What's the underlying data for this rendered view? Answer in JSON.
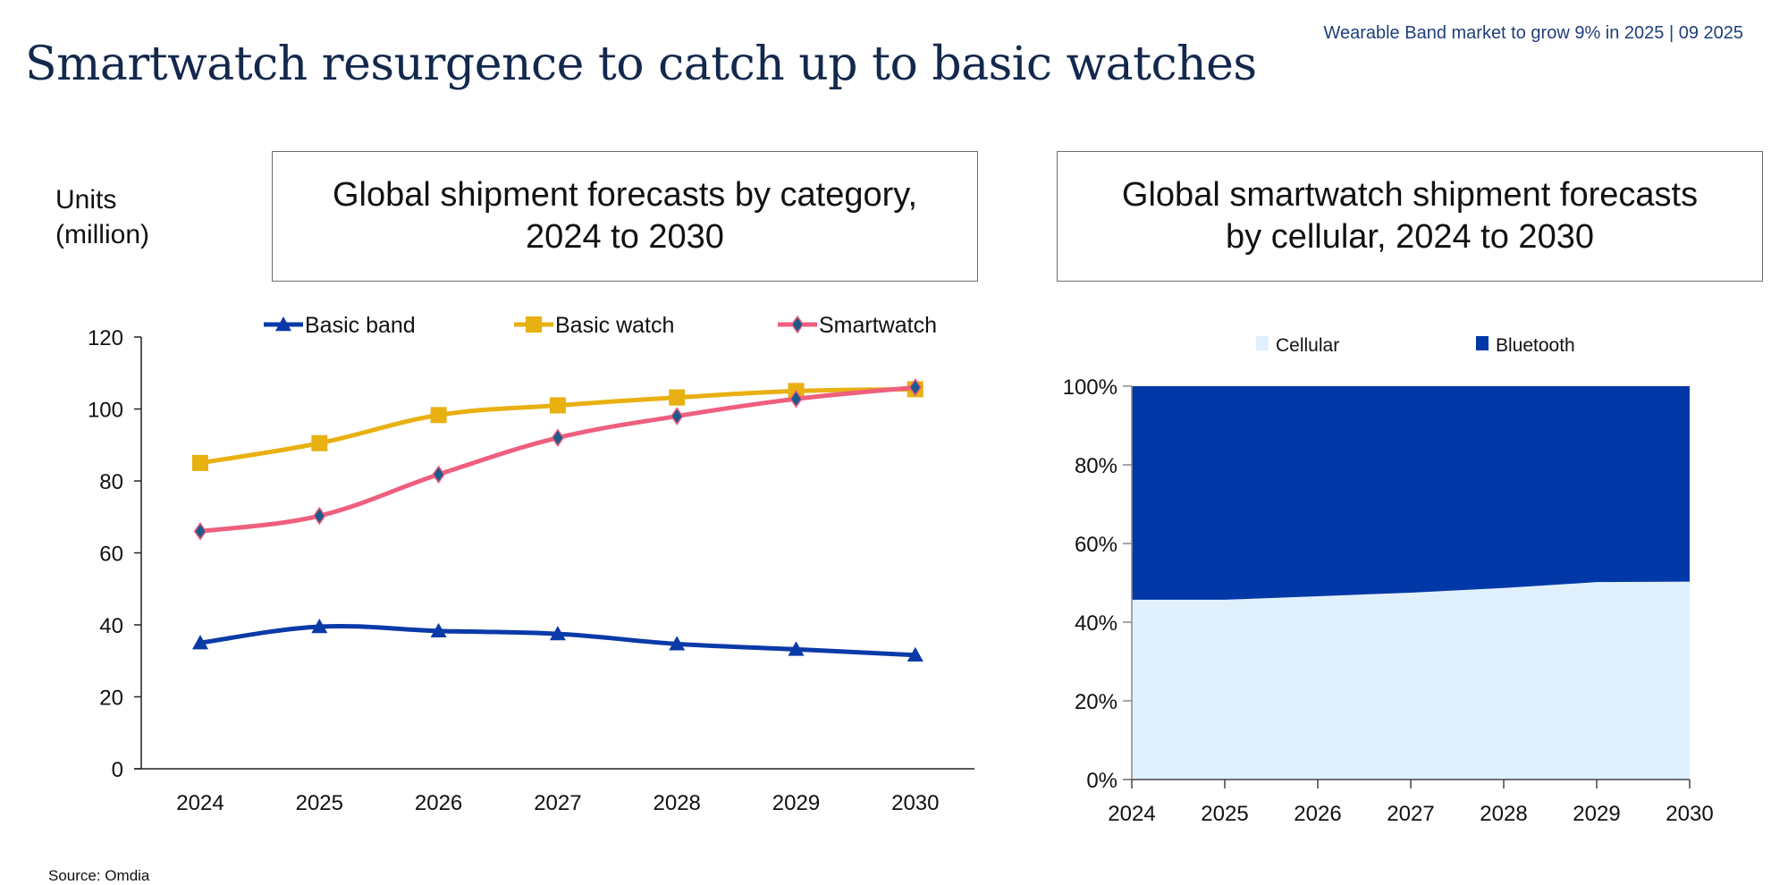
{
  "header": {
    "top_note": "Wearable Band market to grow 9% in 2025 | 09 2025",
    "title": "Smartwatch resurgence to catch up to basic watches"
  },
  "footer": {
    "source": "Source: Omdia"
  },
  "chart_data": [
    {
      "type": "line",
      "title_line1": "Global shipment forecasts by category,",
      "title_line2": "2024 to 2030",
      "ylabel_line1": "Units",
      "ylabel_line2": "(million)",
      "categories": [
        "2024",
        "2025",
        "2026",
        "2027",
        "2028",
        "2029",
        "2030"
      ],
      "ylim": [
        0,
        120
      ],
      "yticks": [
        "0",
        "20",
        "40",
        "60",
        "80",
        "100",
        "120"
      ],
      "grid": false,
      "legend_position": "top",
      "smooth": true,
      "series": [
        {
          "name": "Basic band",
          "color": "#0a3aa8",
          "marker": "triangle",
          "values": [
            35,
            39.5,
            38.3,
            37.5,
            34.7,
            33.2,
            31.6
          ]
        },
        {
          "name": "Basic watch",
          "color": "#e8b010",
          "marker": "square",
          "values": [
            85,
            90.5,
            98.3,
            101,
            103.2,
            105,
            105.5
          ]
        },
        {
          "name": "Smartwatch",
          "color": "#ef5f7e",
          "marker": "diamond",
          "marker_color": "#1f5a8a",
          "values": [
            66,
            70.3,
            81.8,
            92,
            98,
            102.8,
            106
          ]
        }
      ]
    },
    {
      "type": "area",
      "stacked_percent": true,
      "title_line1": "Global smartwatch shipment forecasts",
      "title_line2": "by cellular, 2024 to 2030",
      "categories": [
        "2024",
        "2025",
        "2026",
        "2027",
        "2028",
        "2029",
        "2030"
      ],
      "ylim": [
        0,
        100
      ],
      "yticks": [
        "0%",
        "20%",
        "40%",
        "60%",
        "80%",
        "100%"
      ],
      "grid": false,
      "legend_position": "top",
      "series": [
        {
          "name": "Cellular",
          "color": "#e0f1fd",
          "values": [
            45.7,
            45.7,
            46.6,
            47.5,
            48.7,
            50.2,
            50.3
          ]
        },
        {
          "name": "Bluetooth",
          "color": "#0038a8",
          "values": [
            54.3,
            54.3,
            53.4,
            52.5,
            51.3,
            49.8,
            49.7
          ]
        }
      ]
    }
  ]
}
